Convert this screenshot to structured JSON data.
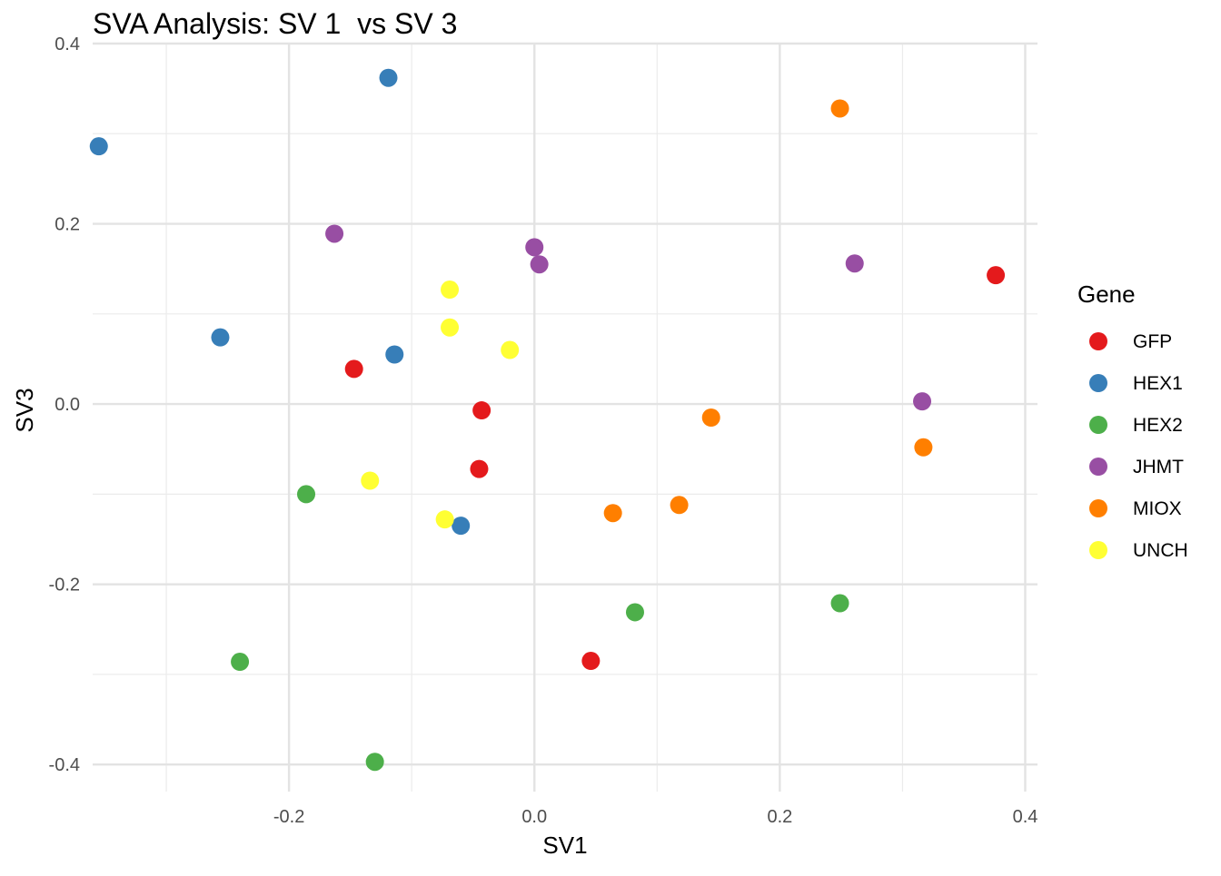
{
  "chart_data": {
    "type": "scatter",
    "title": "SVA Analysis: SV 1  vs SV 3",
    "xlabel": "SV1",
    "ylabel": "SV3",
    "xlim": [
      -0.36,
      0.41
    ],
    "ylim": [
      -0.43,
      0.4
    ],
    "x_ticks": [
      -0.2,
      0.0,
      0.2,
      0.4
    ],
    "x_tick_labels": [
      "-0.2",
      "0.0",
      "0.2",
      "0.4"
    ],
    "y_ticks": [
      -0.4,
      -0.2,
      0.0,
      0.2,
      0.4
    ],
    "y_tick_labels": [
      "-0.4",
      "-0.2",
      "0.0",
      "0.2",
      "0.4"
    ],
    "x_minor_ticks": [
      -0.3,
      -0.1,
      0.1,
      0.3
    ],
    "y_minor_ticks": [
      -0.3,
      -0.1,
      0.1,
      0.3
    ],
    "grid": true,
    "legend_title": "Gene",
    "legend_position": "right",
    "series": [
      {
        "name": "GFP",
        "color": "#E41A1C",
        "points": [
          [
            -0.147,
            0.039
          ],
          [
            -0.043,
            -0.007
          ],
          [
            -0.045,
            -0.072
          ],
          [
            0.046,
            -0.285
          ],
          [
            0.376,
            0.143
          ]
        ]
      },
      {
        "name": "HEX1",
        "color": "#377EB8",
        "points": [
          [
            -0.355,
            0.286
          ],
          [
            -0.119,
            0.362
          ],
          [
            -0.256,
            0.074
          ],
          [
            -0.114,
            0.055
          ],
          [
            -0.06,
            -0.135
          ]
        ]
      },
      {
        "name": "HEX2",
        "color": "#4DAF4A",
        "points": [
          [
            -0.186,
            -0.1
          ],
          [
            -0.24,
            -0.286
          ],
          [
            -0.13,
            -0.397
          ],
          [
            0.082,
            -0.231
          ],
          [
            0.249,
            -0.221
          ]
        ]
      },
      {
        "name": "JHMT",
        "color": "#984EA3",
        "points": [
          [
            -0.163,
            0.189
          ],
          [
            0.0,
            0.174
          ],
          [
            0.004,
            0.155
          ],
          [
            0.261,
            0.156
          ],
          [
            0.316,
            0.003
          ]
        ]
      },
      {
        "name": "MIOX",
        "color": "#FF7F00",
        "points": [
          [
            0.249,
            0.328
          ],
          [
            0.144,
            -0.015
          ],
          [
            0.317,
            -0.048
          ],
          [
            0.064,
            -0.121
          ],
          [
            0.118,
            -0.112
          ]
        ]
      },
      {
        "name": "UNCH",
        "color": "#FFFF33",
        "points": [
          [
            -0.069,
            0.127
          ],
          [
            -0.069,
            0.085
          ],
          [
            -0.02,
            0.06
          ],
          [
            -0.134,
            -0.085
          ],
          [
            -0.073,
            -0.128
          ]
        ]
      }
    ]
  }
}
